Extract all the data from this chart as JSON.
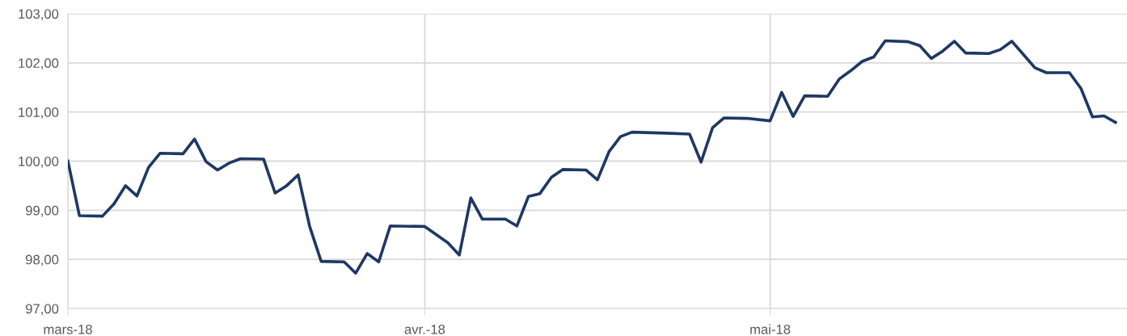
{
  "chart_data": {
    "type": "line",
    "x": [
      "2018-03-01",
      "2018-03-02",
      "2018-03-04",
      "2018-03-05",
      "2018-03-06",
      "2018-03-07",
      "2018-03-08",
      "2018-03-09",
      "2018-03-11",
      "2018-03-12",
      "2018-03-13",
      "2018-03-14",
      "2018-03-15",
      "2018-03-16",
      "2018-03-18",
      "2018-03-19",
      "2018-03-20",
      "2018-03-21",
      "2018-03-22",
      "2018-03-23",
      "2018-03-25",
      "2018-03-26",
      "2018-03-27",
      "2018-03-28",
      "2018-03-29",
      "2018-04-01",
      "2018-04-03",
      "2018-04-04",
      "2018-04-05",
      "2018-04-06",
      "2018-04-08",
      "2018-04-09",
      "2018-04-10",
      "2018-04-11",
      "2018-04-12",
      "2018-04-13",
      "2018-04-15",
      "2018-04-16",
      "2018-04-17",
      "2018-04-18",
      "2018-04-19",
      "2018-04-22",
      "2018-04-24",
      "2018-04-25",
      "2018-04-26",
      "2018-04-27",
      "2018-04-29",
      "2018-05-01",
      "2018-05-02",
      "2018-05-03",
      "2018-05-04",
      "2018-05-06",
      "2018-05-07",
      "2018-05-08",
      "2018-05-09",
      "2018-05-10",
      "2018-05-11",
      "2018-05-13",
      "2018-05-14",
      "2018-05-15",
      "2018-05-16",
      "2018-05-17",
      "2018-05-18",
      "2018-05-20",
      "2018-05-21",
      "2018-05-22",
      "2018-05-23",
      "2018-05-24",
      "2018-05-25",
      "2018-05-27",
      "2018-05-28",
      "2018-05-29",
      "2018-05-30",
      "2018-05-31"
    ],
    "series": [
      {
        "color": "#1f3864",
        "values": [
          100.0,
          98.89,
          98.88,
          99.13,
          99.5,
          99.29,
          99.87,
          100.16,
          100.15,
          100.45,
          99.99,
          99.82,
          99.96,
          100.05,
          100.04,
          99.35,
          99.5,
          99.72,
          98.67,
          97.96,
          97.95,
          97.72,
          98.12,
          97.95,
          98.68,
          98.67,
          98.34,
          98.09,
          99.25,
          98.82,
          98.82,
          98.68,
          99.28,
          99.34,
          99.67,
          99.83,
          99.82,
          99.62,
          100.19,
          100.5,
          100.59,
          100.57,
          100.55,
          99.98,
          100.68,
          100.88,
          100.87,
          100.82,
          101.4,
          100.91,
          101.33,
          101.32,
          101.67,
          101.84,
          102.03,
          102.12,
          102.45,
          102.43,
          102.35,
          102.09,
          102.24,
          102.44,
          102.2,
          102.19,
          102.27,
          102.44,
          102.17,
          101.9,
          101.8,
          101.8,
          101.48,
          100.9,
          100.92,
          100.79
        ]
      }
    ],
    "xlim": [
      "2018-03-01",
      "2018-06-01"
    ],
    "xticks": [
      {
        "value": "2018-03-01",
        "label": "mars-18"
      },
      {
        "value": "2018-04-01",
        "label": "avr.-18"
      },
      {
        "value": "2018-05-01",
        "label": "mai-18"
      }
    ],
    "ylim": [
      97,
      103
    ],
    "yticks": [
      {
        "value": 97,
        "label": "97,00"
      },
      {
        "value": 98,
        "label": "98,00"
      },
      {
        "value": 99,
        "label": "99,00"
      },
      {
        "value": 100,
        "label": "100,00"
      },
      {
        "value": 101,
        "label": "101,00"
      },
      {
        "value": 102,
        "label": "102,00"
      },
      {
        "value": 103,
        "label": "103,00"
      }
    ],
    "grid": true,
    "marker": "none",
    "line_style": "solid"
  }
}
